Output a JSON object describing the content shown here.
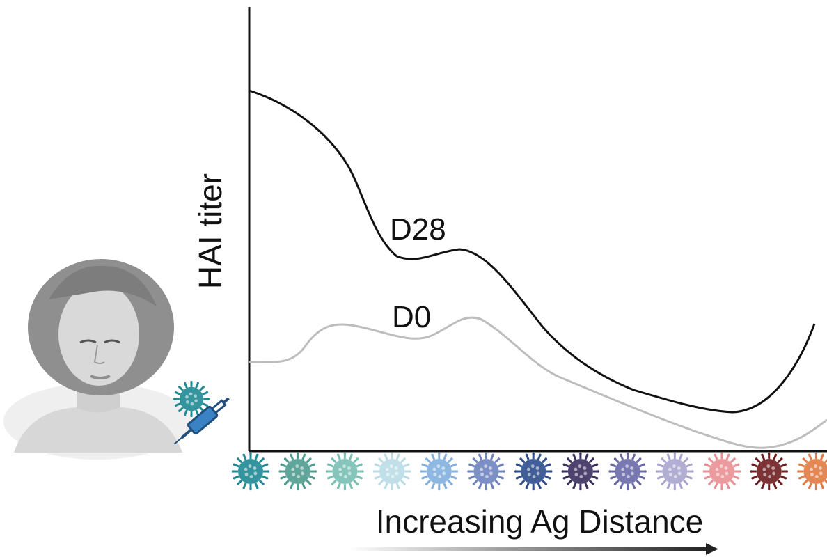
{
  "y_axis_label": "HAI titer",
  "x_axis_label": "Increasing Ag Distance",
  "series": [
    {
      "label": "D28",
      "color": "#111111"
    },
    {
      "label": "D0",
      "color": "#bdbdbd"
    }
  ],
  "icons": {
    "person": "vaccinated-person-icon",
    "virus": "virus-icon",
    "syringe": "syringe-icon",
    "arrow": "increasing-arrow-icon"
  },
  "viruses": [
    {
      "icon": "virus-icon",
      "color": "#1f8a93"
    },
    {
      "icon": "virus-icon",
      "color": "#4e9b8f"
    },
    {
      "icon": "virus-icon",
      "color": "#78bfb4"
    },
    {
      "icon": "virus-icon",
      "color": "#b9dce6"
    },
    {
      "icon": "virus-icon",
      "color": "#82b0df"
    },
    {
      "icon": "virus-icon",
      "color": "#6f84bf"
    },
    {
      "icon": "virus-icon",
      "color": "#2d4d8d"
    },
    {
      "icon": "virus-icon",
      "color": "#3b2f5e"
    },
    {
      "icon": "virus-icon",
      "color": "#6a69a8"
    },
    {
      "icon": "virus-icon",
      "color": "#aaa4ce"
    },
    {
      "icon": "virus-icon",
      "color": "#e98f93"
    },
    {
      "icon": "virus-icon",
      "color": "#6e1d1f"
    },
    {
      "icon": "virus-icon",
      "color": "#e07b43"
    }
  ],
  "vaccine_virus": {
    "icon": "virus-icon",
    "color": "#1f8a93"
  }
}
